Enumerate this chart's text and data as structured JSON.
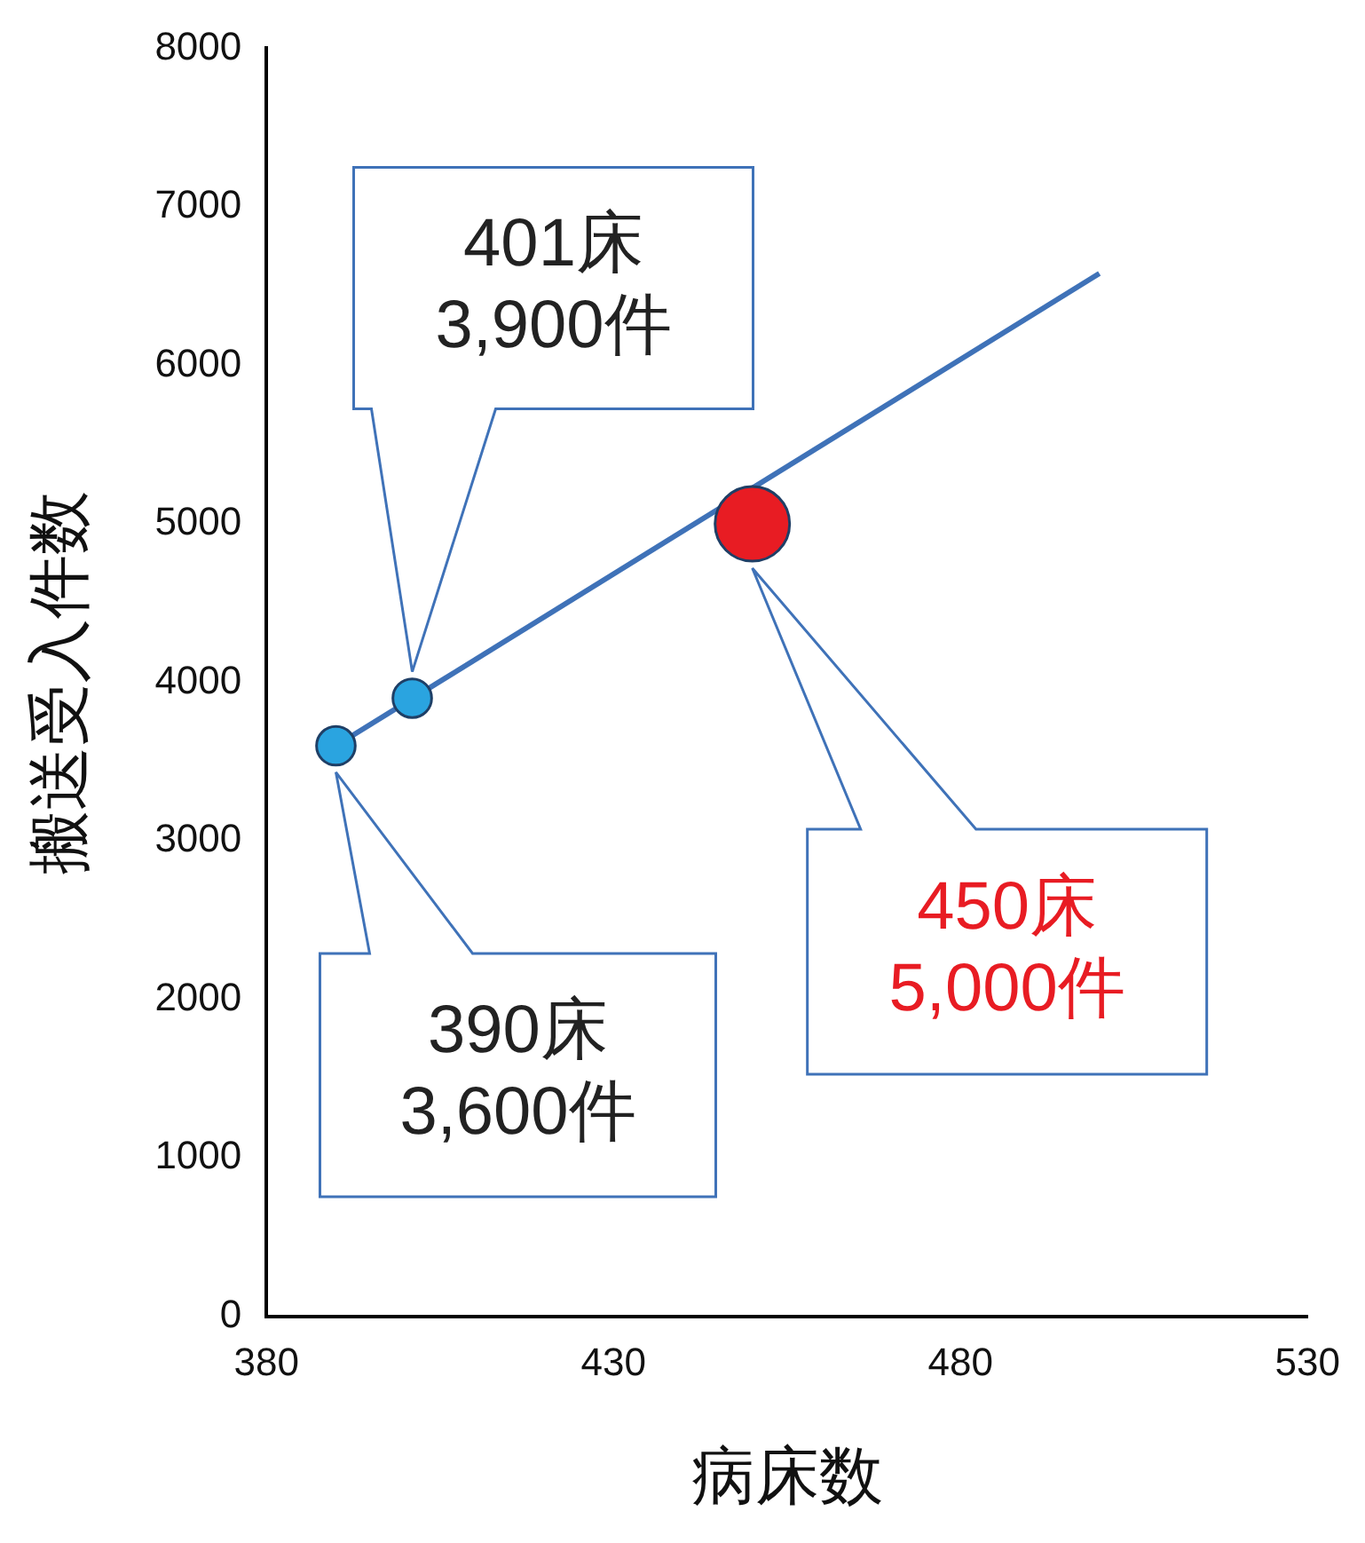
{
  "chart_data": {
    "type": "scatter",
    "xlabel": "病床数",
    "ylabel": "搬送受入件数",
    "xlim": [
      380,
      530
    ],
    "xticks": [
      380,
      430,
      480,
      530
    ],
    "ylim": [
      0,
      8000
    ],
    "yticks": [
      0,
      1000,
      2000,
      3000,
      4000,
      5000,
      6000,
      7000,
      8000
    ],
    "grid": false,
    "legend": false,
    "series": [
      {
        "type": "line",
        "color": "#3f72b8",
        "x": [
          390,
          500
        ],
        "values": [
          3600,
          6580
        ],
        "marker": "none"
      },
      {
        "type": "bubble",
        "colors": [
          "#2aa4e0",
          "#2aa4e0",
          "#e81c23"
        ],
        "x": [
          390,
          401,
          450
        ],
        "values": [
          3600,
          3900,
          5000
        ],
        "sizes": [
          0.27,
          0.27,
          1
        ]
      }
    ],
    "annotations": [
      "390床\n3,600件",
      "401床\n3,900件",
      "450床\n5,000件"
    ]
  }
}
